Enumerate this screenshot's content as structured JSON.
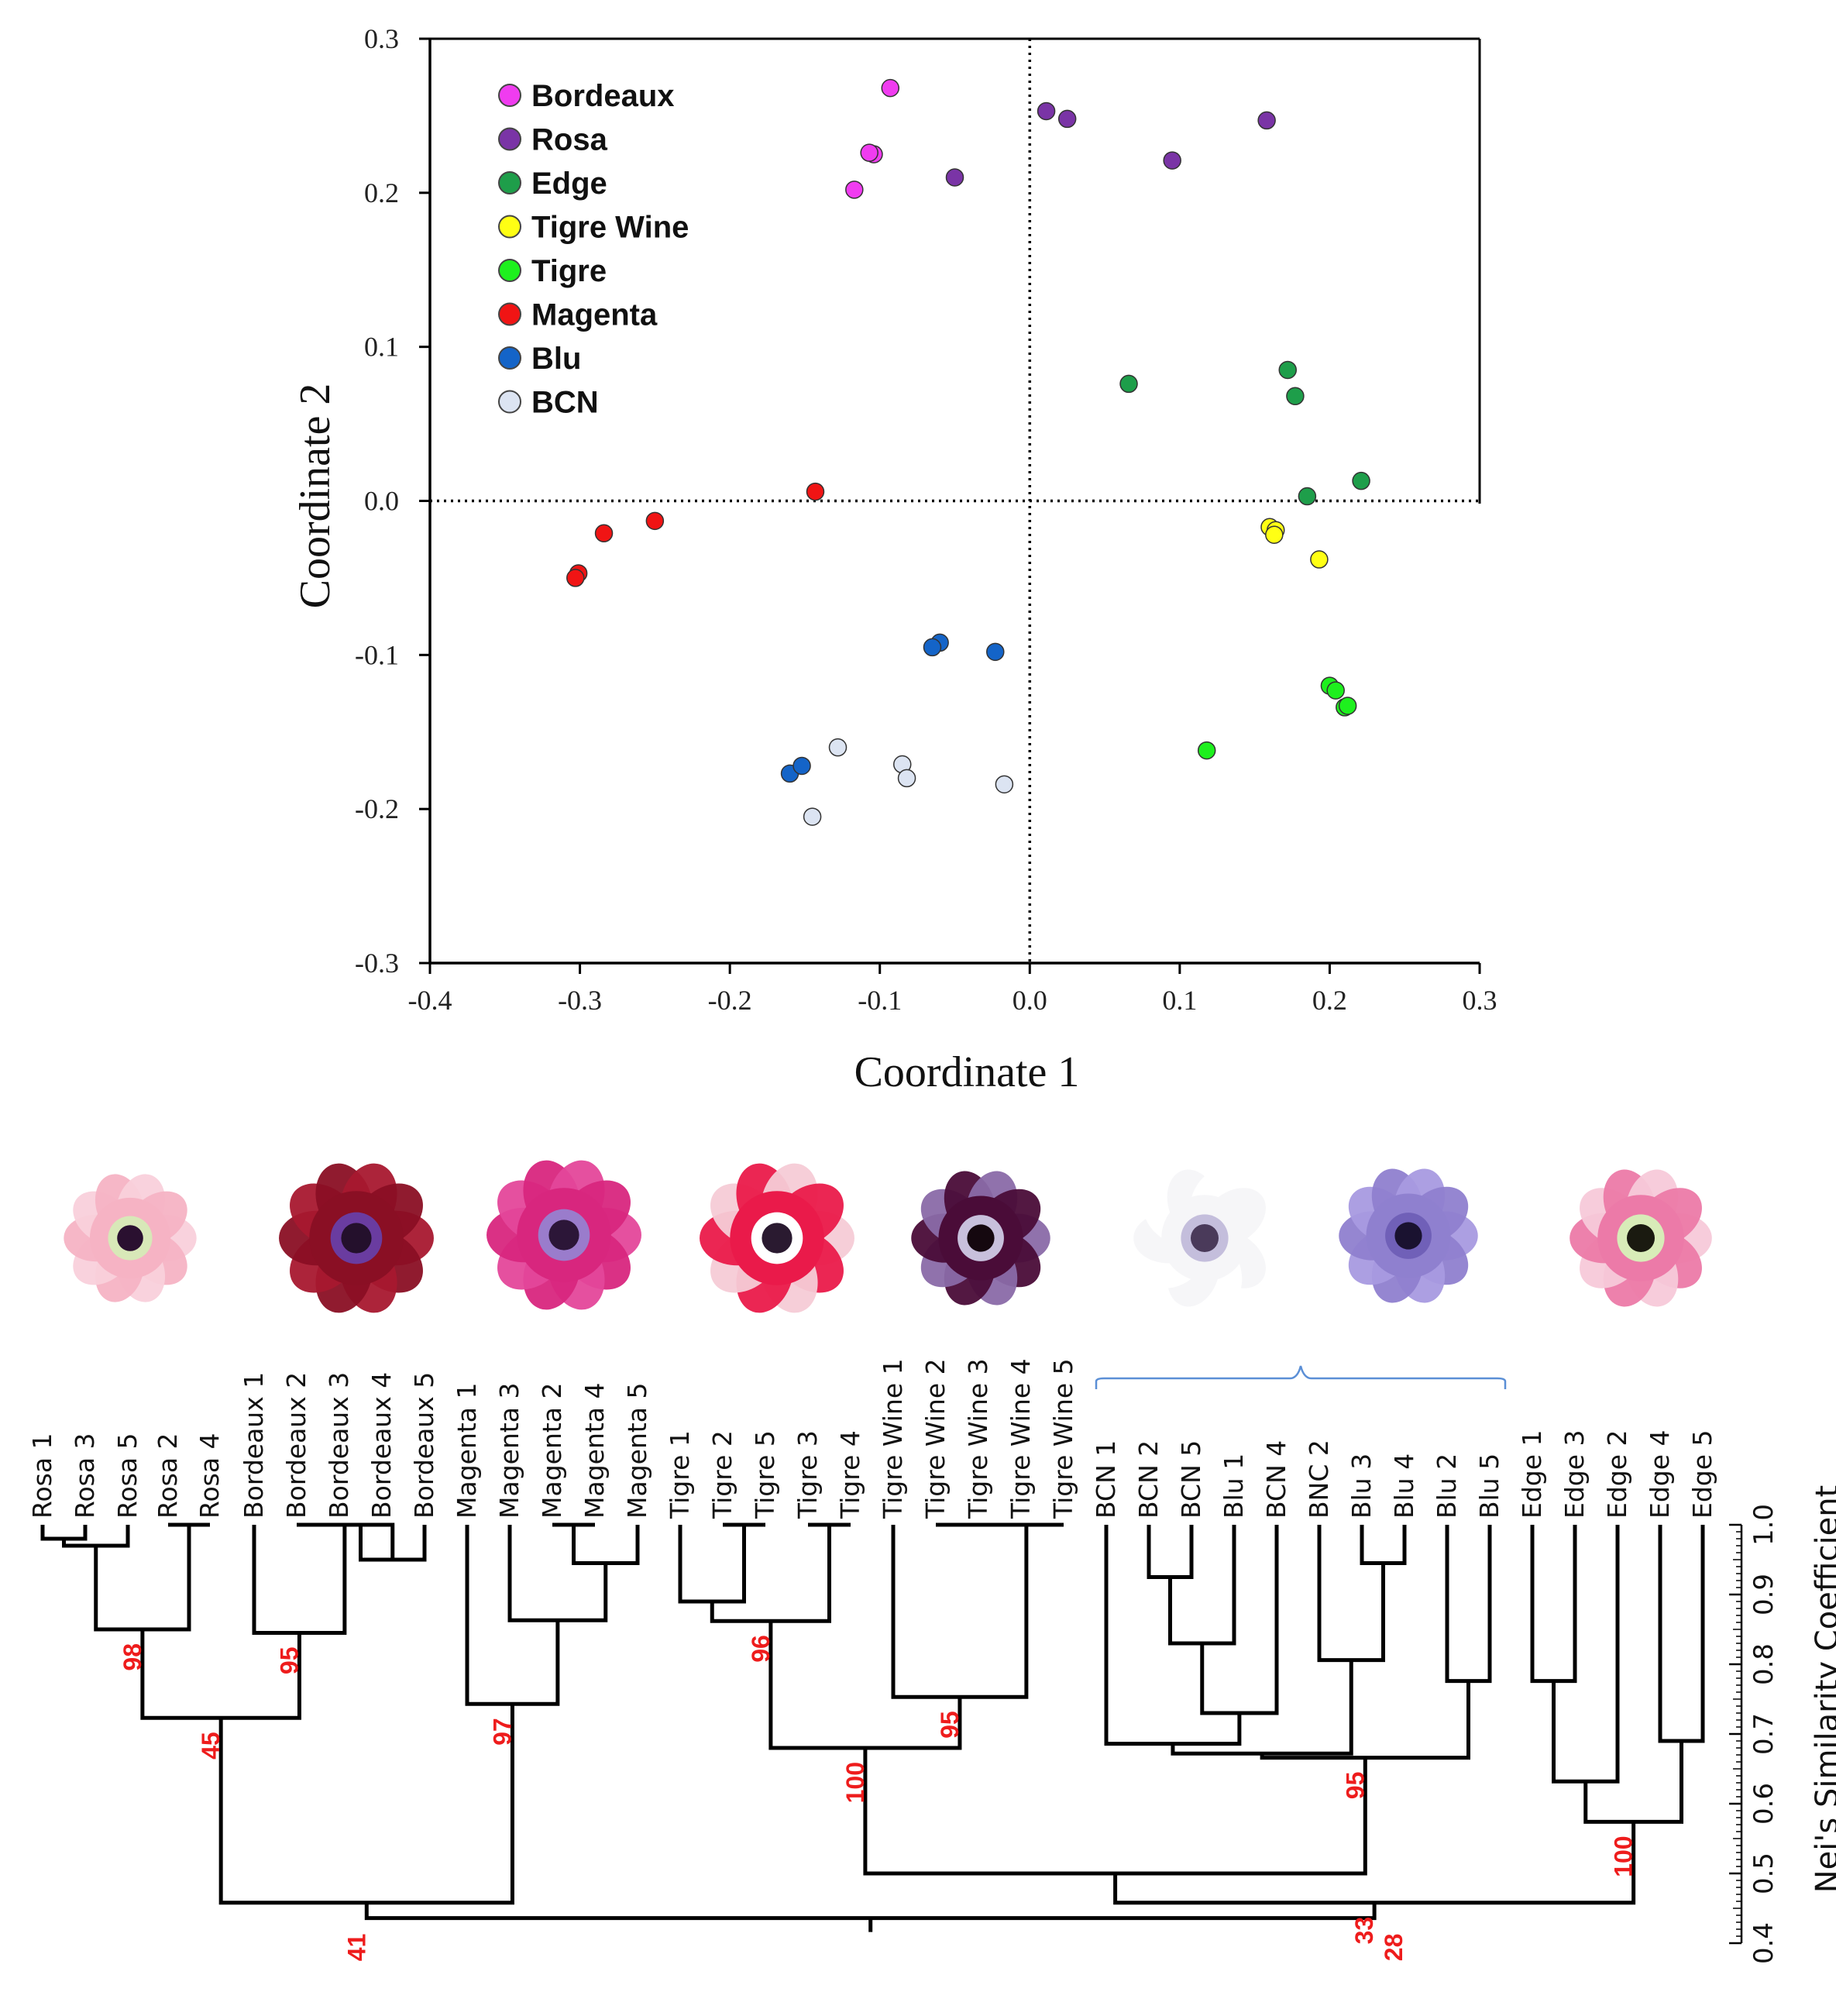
{
  "colors": {
    "Bordeaux": "#f03cf0",
    "Rosa": "#7a34a6",
    "Edge": "#1e9e4a",
    "Tigre Wine": "#ffff14",
    "Tigre": "#1ef01e",
    "Magenta": "#f01414",
    "Blu": "#1464c8",
    "BCN": "#dce4f2",
    "bootstrap": "#ee1c1c",
    "bracket": "#5b8fd6"
  },
  "chart_data": [
    {
      "type": "scatter",
      "title": "",
      "xlabel": "Coordinate 1",
      "ylabel": "Coordinate 2",
      "xlim": [
        -0.4,
        0.3
      ],
      "ylim": [
        -0.3,
        0.3
      ],
      "xticks": [
        "-0.4",
        "-0.3",
        "-0.2",
        "-0.1",
        "0.0",
        "0.1",
        "0.2",
        "0.3"
      ],
      "yticks": [
        "0.3",
        "0.2",
        "0.1",
        "0.0",
        "-0.1",
        "-0.2",
        "-0.3"
      ],
      "legend_position": "top-left",
      "series": [
        {
          "name": "Bordeaux",
          "points": [
            [
              -0.093,
              0.268
            ],
            [
              -0.104,
              0.225
            ],
            [
              -0.107,
              0.226
            ],
            [
              -0.117,
              0.202
            ]
          ]
        },
        {
          "name": "Rosa",
          "points": [
            [
              -0.05,
              0.21
            ],
            [
              0.011,
              0.253
            ],
            [
              0.025,
              0.248
            ],
            [
              0.095,
              0.221
            ],
            [
              0.158,
              0.247
            ]
          ]
        },
        {
          "name": "Edge",
          "points": [
            [
              0.066,
              0.076
            ],
            [
              0.172,
              0.085
            ],
            [
              0.177,
              0.068
            ],
            [
              0.185,
              0.003
            ],
            [
              0.221,
              0.013
            ]
          ]
        },
        {
          "name": "Tigre Wine",
          "points": [
            [
              0.16,
              -0.017
            ],
            [
              0.164,
              -0.019
            ],
            [
              0.163,
              -0.022
            ],
            [
              0.193,
              -0.038
            ]
          ]
        },
        {
          "name": "Tigre",
          "points": [
            [
              0.2,
              -0.12
            ],
            [
              0.204,
              -0.123
            ],
            [
              0.21,
              -0.134
            ],
            [
              0.212,
              -0.133
            ],
            [
              0.118,
              -0.162
            ]
          ]
        },
        {
          "name": "Magenta",
          "points": [
            [
              -0.143,
              0.006
            ],
            [
              -0.25,
              -0.013
            ],
            [
              -0.284,
              -0.021
            ],
            [
              -0.301,
              -0.047
            ],
            [
              -0.303,
              -0.05
            ]
          ]
        },
        {
          "name": "Blu",
          "points": [
            [
              -0.06,
              -0.092
            ],
            [
              -0.065,
              -0.095
            ],
            [
              -0.023,
              -0.098
            ],
            [
              -0.16,
              -0.177
            ],
            [
              -0.152,
              -0.172
            ]
          ]
        },
        {
          "name": "BCN",
          "points": [
            [
              -0.128,
              -0.16
            ],
            [
              -0.085,
              -0.171
            ],
            [
              -0.082,
              -0.18
            ],
            [
              -0.017,
              -0.184
            ],
            [
              -0.145,
              -0.205
            ]
          ]
        }
      ]
    },
    {
      "type": "dendrogram",
      "ylabel": "Nei's Similarity Coefficient",
      "ylim": [
        0.4,
        1.0
      ],
      "yticks": [
        "1.0",
        "0.9",
        "0.8",
        "0.7",
        "0.6",
        "0.5",
        "0.4"
      ],
      "leaves": [
        "Rosa 1",
        "Rosa 3",
        "Rosa 5",
        "Rosa 2",
        "Rosa 4",
        "Bordeaux 1",
        "Bordeaux 2",
        "Bordeaux 3",
        "Bordeaux 4",
        "Bordeaux 5",
        "Magenta 1",
        "Magenta 3",
        "Magenta 2",
        "Magenta 4",
        "Magenta 5",
        "Tigre 1",
        "Tigre 2",
        "Tigre 5",
        "Tigre 3",
        "Tigre 4",
        "Tigre Wine 1",
        "Tigre Wine 2",
        "Tigre Wine 3",
        "Tigre Wine 4",
        "Tigre Wine 5",
        "BCN 1",
        "BCN 2",
        "BCN 5",
        "Blu 1",
        "BCN 4",
        "BNC 2",
        "Blu 3",
        "Blu 4",
        "Blu 2",
        "Blu 5",
        "Edge 1",
        "Edge 3",
        "Edge 2",
        "Edge 4",
        "Edge 5"
      ],
      "merges": [
        {
          "a": "L0",
          "b": "L1",
          "h": 0.98,
          "id": "r1"
        },
        {
          "a": "r1",
          "b": "L2",
          "h": 0.97,
          "id": "r2"
        },
        {
          "a": "L3",
          "b": "L4",
          "h": 1.0,
          "id": "r3"
        },
        {
          "a": "r2",
          "b": "r3",
          "h": 0.85,
          "id": "rosa",
          "boot": "98"
        },
        {
          "a": "L7",
          "b": "L8",
          "h": 1.0,
          "id": "b1"
        },
        {
          "a": "b1",
          "b": "L9",
          "h": 0.95,
          "id": "b2"
        },
        {
          "a": "L6",
          "b": "b2",
          "h": 1.0,
          "id": "b3"
        },
        {
          "a": "L5",
          "b": "b3",
          "h": 0.845,
          "id": "bord",
          "boot": "95"
        },
        {
          "a": "rosa",
          "b": "bord",
          "h": 0.723,
          "id": "rb",
          "boot": "45"
        },
        {
          "a": "L12",
          "b": "L13",
          "h": 1.0,
          "id": "m1"
        },
        {
          "a": "m1",
          "b": "L14",
          "h": 0.945,
          "id": "m2"
        },
        {
          "a": "L11",
          "b": "m2",
          "h": 0.863,
          "id": "m3"
        },
        {
          "a": "L10",
          "b": "m3",
          "h": 0.743,
          "id": "mag",
          "boot": "97"
        },
        {
          "a": "rb",
          "b": "mag",
          "h": 0.458,
          "id": "rbm"
        },
        {
          "a": "L16",
          "b": "L17",
          "h": 1.0,
          "id": "t1"
        },
        {
          "a": "L15",
          "b": "t1",
          "h": 0.89,
          "id": "t2"
        },
        {
          "a": "L18",
          "b": "L19",
          "h": 1.0,
          "id": "t3"
        },
        {
          "a": "t2",
          "b": "t3",
          "h": 0.862,
          "id": "tig",
          "boot": "96"
        },
        {
          "a": "L21",
          "b": "L22",
          "h": 1.0,
          "id": "w1"
        },
        {
          "a": "w1",
          "b": "L23",
          "h": 1.0,
          "id": "w2"
        },
        {
          "a": "w2",
          "b": "L24",
          "h": 1.0,
          "id": "w3"
        },
        {
          "a": "L20",
          "b": "w3",
          "h": 0.753,
          "id": "tw",
          "boot": "95"
        },
        {
          "a": "tig",
          "b": "tw",
          "h": 0.68,
          "id": "ttw",
          "boot": "100"
        },
        {
          "a": "L26",
          "b": "L27",
          "h": 0.925,
          "id": "c1"
        },
        {
          "a": "c1",
          "b": "L28",
          "h": 0.83,
          "id": "c2"
        },
        {
          "a": "c2",
          "b": "L29",
          "h": 0.73,
          "id": "c3"
        },
        {
          "a": "L25",
          "b": "c3",
          "h": 0.686,
          "id": "c4"
        },
        {
          "a": "L31",
          "b": "L32",
          "h": 0.945,
          "id": "u1"
        },
        {
          "a": "L30",
          "b": "u1",
          "h": 0.806,
          "id": "u2"
        },
        {
          "a": "c4",
          "b": "u2",
          "h": 0.672,
          "id": "c5"
        },
        {
          "a": "L33",
          "b": "L34",
          "h": 0.776,
          "id": "u3"
        },
        {
          "a": "c5",
          "b": "u3",
          "h": 0.666,
          "id": "bb",
          "boot": "95"
        },
        {
          "a": "ttw",
          "b": "bb",
          "h": 0.5,
          "id": "mid"
        },
        {
          "a": "L35",
          "b": "L36",
          "h": 0.776,
          "id": "e1"
        },
        {
          "a": "e1",
          "b": "L37",
          "h": 0.632,
          "id": "e2"
        },
        {
          "a": "L38",
          "b": "L39",
          "h": 0.69,
          "id": "e3"
        },
        {
          "a": "e2",
          "b": "e3",
          "h": 0.574,
          "id": "edge",
          "boot": "100"
        },
        {
          "a": "mid",
          "b": "edge",
          "h": 0.458,
          "id": "right",
          "boot": "33"
        },
        {
          "a": "rbm",
          "b": "right",
          "h": 0.436,
          "id": "root"
        }
      ],
      "root_labels": {
        "left": "41",
        "right": "28"
      }
    }
  ]
}
